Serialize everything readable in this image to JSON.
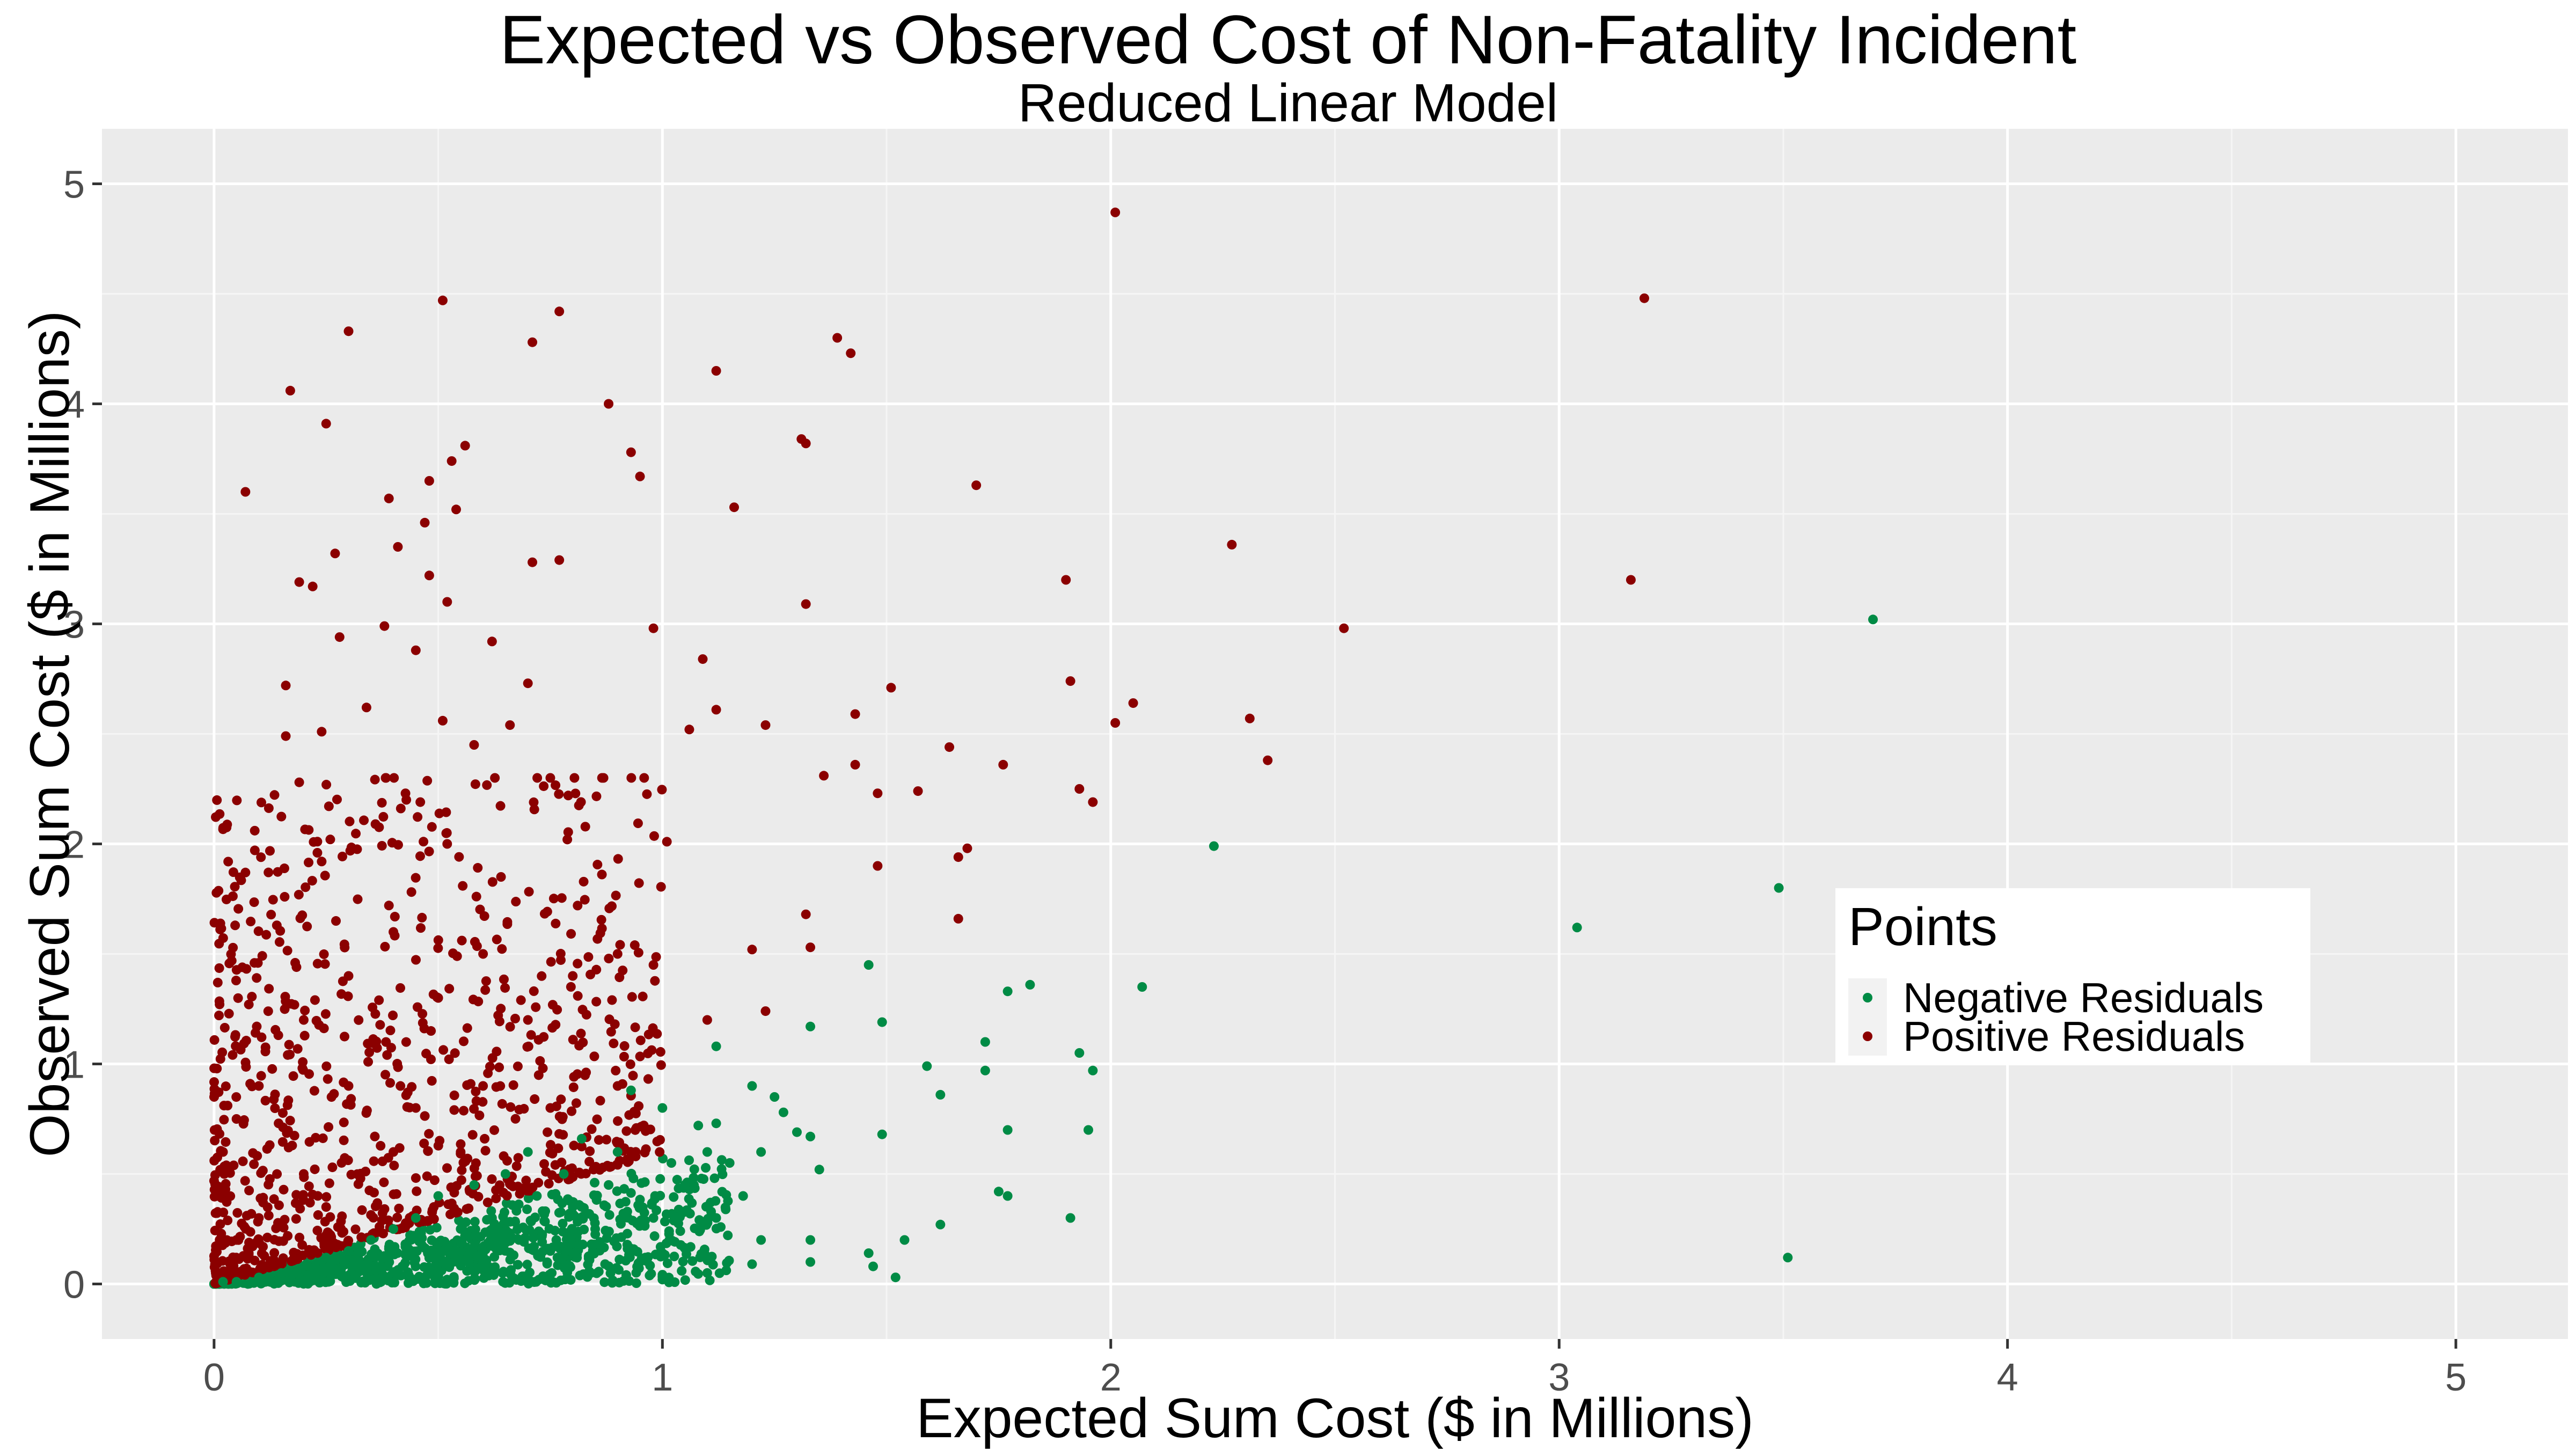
{
  "chart_data": {
    "type": "scatter",
    "title": "Expected vs Observed Cost of Non-Fatality Incident",
    "subtitle": "Reduced Linear Model",
    "xlabel": "Expected Sum Cost ($ in Millions)",
    "ylabel": "Observed Sum Cost ($ in Millions)",
    "xlim": [
      -0.25,
      5.25
    ],
    "ylim": [
      -0.25,
      5.25
    ],
    "xticks": [
      0,
      1,
      2,
      3,
      4,
      5
    ],
    "yticks": [
      0,
      1,
      2,
      3,
      4,
      5
    ],
    "grid": true,
    "legend": {
      "title": "Points",
      "position": "right",
      "entries": [
        "Negative Residuals",
        "Positive Residuals"
      ]
    },
    "series": [
      {
        "name": "Negative Residuals",
        "color": "#008b45",
        "points": [
          [
            3.7,
            3.02
          ],
          [
            3.49,
            1.8
          ],
          [
            3.04,
            1.62
          ],
          [
            3.51,
            0.12
          ],
          [
            2.23,
            1.99
          ],
          [
            2.07,
            1.35
          ],
          [
            1.82,
            1.36
          ],
          [
            1.77,
            1.33
          ],
          [
            1.72,
            1.1
          ],
          [
            1.72,
            0.97
          ],
          [
            1.93,
            1.05
          ],
          [
            1.96,
            0.97
          ],
          [
            1.95,
            0.7
          ],
          [
            1.77,
            0.7
          ],
          [
            1.91,
            0.3
          ],
          [
            1.75,
            0.42
          ],
          [
            1.77,
            0.4
          ],
          [
            1.62,
            0.86
          ],
          [
            1.59,
            0.99
          ],
          [
            1.49,
            1.19
          ],
          [
            1.46,
            1.45
          ],
          [
            1.49,
            0.68
          ],
          [
            1.62,
            0.27
          ],
          [
            1.54,
            0.2
          ],
          [
            1.46,
            0.14
          ],
          [
            1.47,
            0.08
          ],
          [
            1.52,
            0.03
          ],
          [
            1.33,
            1.17
          ],
          [
            1.27,
            0.78
          ],
          [
            1.3,
            0.69
          ],
          [
            1.33,
            0.67
          ],
          [
            1.35,
            0.52
          ],
          [
            1.33,
            0.2
          ],
          [
            1.33,
            0.1
          ],
          [
            1.2,
            0.9
          ],
          [
            1.25,
            0.85
          ],
          [
            1.22,
            0.6
          ],
          [
            1.18,
            0.4
          ],
          [
            1.22,
            0.2
          ],
          [
            1.2,
            0.09
          ],
          [
            1.12,
            1.08
          ],
          [
            1.12,
            0.73
          ],
          [
            1.15,
            0.55
          ],
          [
            1.08,
            0.72
          ],
          [
            1.1,
            0.6
          ],
          [
            1.05,
            0.45
          ],
          [
            1.12,
            0.3
          ],
          [
            1.1,
            0.05
          ],
          [
            1.0,
            0.8
          ],
          [
            1.02,
            0.55
          ],
          [
            0.98,
            0.3
          ],
          [
            0.95,
            0.1
          ],
          [
            1.0,
            0.02
          ],
          [
            0.93,
            0.88
          ],
          [
            0.9,
            0.6
          ],
          [
            0.88,
            0.45
          ],
          [
            0.85,
            0.25
          ],
          [
            0.82,
            0.66
          ],
          [
            0.78,
            0.5
          ],
          [
            0.8,
            0.35
          ],
          [
            0.75,
            0.15
          ],
          [
            0.7,
            0.6
          ],
          [
            0.72,
            0.4
          ],
          [
            0.68,
            0.2
          ],
          [
            0.65,
            0.5
          ],
          [
            0.62,
            0.3
          ],
          [
            0.6,
            0.1
          ],
          [
            0.58,
            0.45
          ],
          [
            0.55,
            0.25
          ],
          [
            0.5,
            0.4
          ],
          [
            0.48,
            0.15
          ],
          [
            0.45,
            0.3
          ],
          [
            0.42,
            0.08
          ],
          [
            0.4,
            0.25
          ],
          [
            0.38,
            0.12
          ],
          [
            0.35,
            0.2
          ],
          [
            0.3,
            0.15
          ],
          [
            0.28,
            0.05
          ],
          [
            0.25,
            0.12
          ],
          [
            0.2,
            0.08
          ],
          [
            0.15,
            0.05
          ],
          [
            0.1,
            0.03
          ],
          [
            0.05,
            0.01
          ],
          [
            0.02,
            0.01
          ]
        ],
        "cluster": {
          "x_max": 1.15,
          "y_slope": 0.6,
          "y_min": 0,
          "count_note": "dense band of points near y = 0 to 0.6 x"
        }
      },
      {
        "name": "Positive Residuals",
        "color": "#8b0000",
        "points": [
          [
            2.01,
            4.87
          ],
          [
            3.19,
            4.48
          ],
          [
            0.51,
            4.47
          ],
          [
            0.77,
            4.42
          ],
          [
            0.3,
            4.33
          ],
          [
            1.39,
            4.3
          ],
          [
            0.71,
            4.28
          ],
          [
            1.42,
            4.23
          ],
          [
            1.12,
            4.15
          ],
          [
            0.17,
            4.06
          ],
          [
            0.88,
            4.0
          ],
          [
            0.25,
            3.91
          ],
          [
            1.31,
            3.84
          ],
          [
            1.32,
            3.82
          ],
          [
            0.56,
            3.81
          ],
          [
            0.93,
            3.78
          ],
          [
            0.53,
            3.74
          ],
          [
            0.95,
            3.67
          ],
          [
            0.48,
            3.65
          ],
          [
            1.7,
            3.63
          ],
          [
            0.07,
            3.6
          ],
          [
            0.39,
            3.57
          ],
          [
            1.16,
            3.53
          ],
          [
            0.54,
            3.52
          ],
          [
            0.47,
            3.46
          ],
          [
            0.41,
            3.35
          ],
          [
            2.27,
            3.36
          ],
          [
            0.27,
            3.32
          ],
          [
            0.71,
            3.28
          ],
          [
            0.77,
            3.29
          ],
          [
            0.48,
            3.22
          ],
          [
            3.16,
            3.2
          ],
          [
            1.9,
            3.2
          ],
          [
            0.19,
            3.19
          ],
          [
            0.22,
            3.17
          ],
          [
            0.52,
            3.1
          ],
          [
            1.32,
            3.09
          ],
          [
            0.38,
            2.99
          ],
          [
            0.98,
            2.98
          ],
          [
            2.52,
            2.98
          ],
          [
            0.28,
            2.94
          ],
          [
            0.62,
            2.92
          ],
          [
            0.45,
            2.88
          ],
          [
            1.09,
            2.84
          ],
          [
            0.7,
            2.73
          ],
          [
            1.91,
            2.74
          ],
          [
            1.51,
            2.71
          ],
          [
            0.16,
            2.72
          ],
          [
            0.34,
            2.62
          ],
          [
            1.12,
            2.61
          ],
          [
            2.05,
            2.64
          ],
          [
            1.43,
            2.59
          ],
          [
            2.31,
            2.57
          ],
          [
            2.01,
            2.55
          ],
          [
            0.51,
            2.56
          ],
          [
            1.23,
            2.54
          ],
          [
            1.06,
            2.52
          ],
          [
            0.66,
            2.54
          ],
          [
            0.16,
            2.49
          ],
          [
            0.24,
            2.51
          ],
          [
            1.64,
            2.44
          ],
          [
            0.58,
            2.45
          ],
          [
            2.35,
            2.38
          ],
          [
            1.76,
            2.36
          ],
          [
            1.43,
            2.36
          ],
          [
            1.36,
            2.31
          ],
          [
            0.75,
            2.3
          ],
          [
            0.19,
            2.28
          ],
          [
            1.93,
            2.25
          ],
          [
            1.57,
            2.24
          ],
          [
            1.48,
            2.23
          ],
          [
            0.79,
            2.22
          ],
          [
            1.96,
            2.19
          ],
          [
            0.46,
            2.19
          ],
          [
            0.36,
            2.09
          ],
          [
            1.01,
            2.01
          ],
          [
            0.52,
            2.0
          ],
          [
            1.68,
            1.98
          ],
          [
            1.66,
            1.94
          ],
          [
            1.48,
            1.9
          ],
          [
            0.24,
            1.92
          ],
          [
            0.07,
            1.87
          ],
          [
            0.64,
            1.85
          ],
          [
            1.32,
            1.68
          ],
          [
            1.66,
            1.66
          ],
          [
            0.39,
            1.72
          ],
          [
            0.14,
            1.63
          ],
          [
            1.33,
            1.53
          ],
          [
            1.2,
            1.52
          ],
          [
            0.98,
            1.45
          ],
          [
            1.23,
            1.24
          ],
          [
            1.1,
            1.2
          ],
          [
            0.9,
            1.5
          ],
          [
            0.8,
            1.4
          ],
          [
            0.7,
            1.2
          ],
          [
            0.6,
            1.5
          ],
          [
            0.5,
            1.3
          ],
          [
            0.4,
            1.6
          ],
          [
            0.3,
            1.4
          ],
          [
            0.2,
            1.2
          ],
          [
            0.1,
            0.9
          ],
          [
            0.05,
            0.75
          ],
          [
            0.02,
            0.6
          ],
          [
            0.3,
            0.9
          ],
          [
            0.45,
            0.8
          ],
          [
            0.6,
            0.9
          ],
          [
            0.75,
            0.8
          ],
          [
            0.9,
            0.9
          ],
          [
            0.2,
            0.5
          ],
          [
            0.4,
            0.6
          ],
          [
            0.55,
            0.6
          ],
          [
            0.1,
            0.3
          ],
          [
            0.05,
            0.2
          ],
          [
            0.25,
            0.35
          ]
        ],
        "cluster": {
          "x_max": 1.0,
          "y_min_slope": 0.6,
          "y_max": 2.2,
          "count_note": "dense cloud above the green band"
        }
      }
    ]
  }
}
